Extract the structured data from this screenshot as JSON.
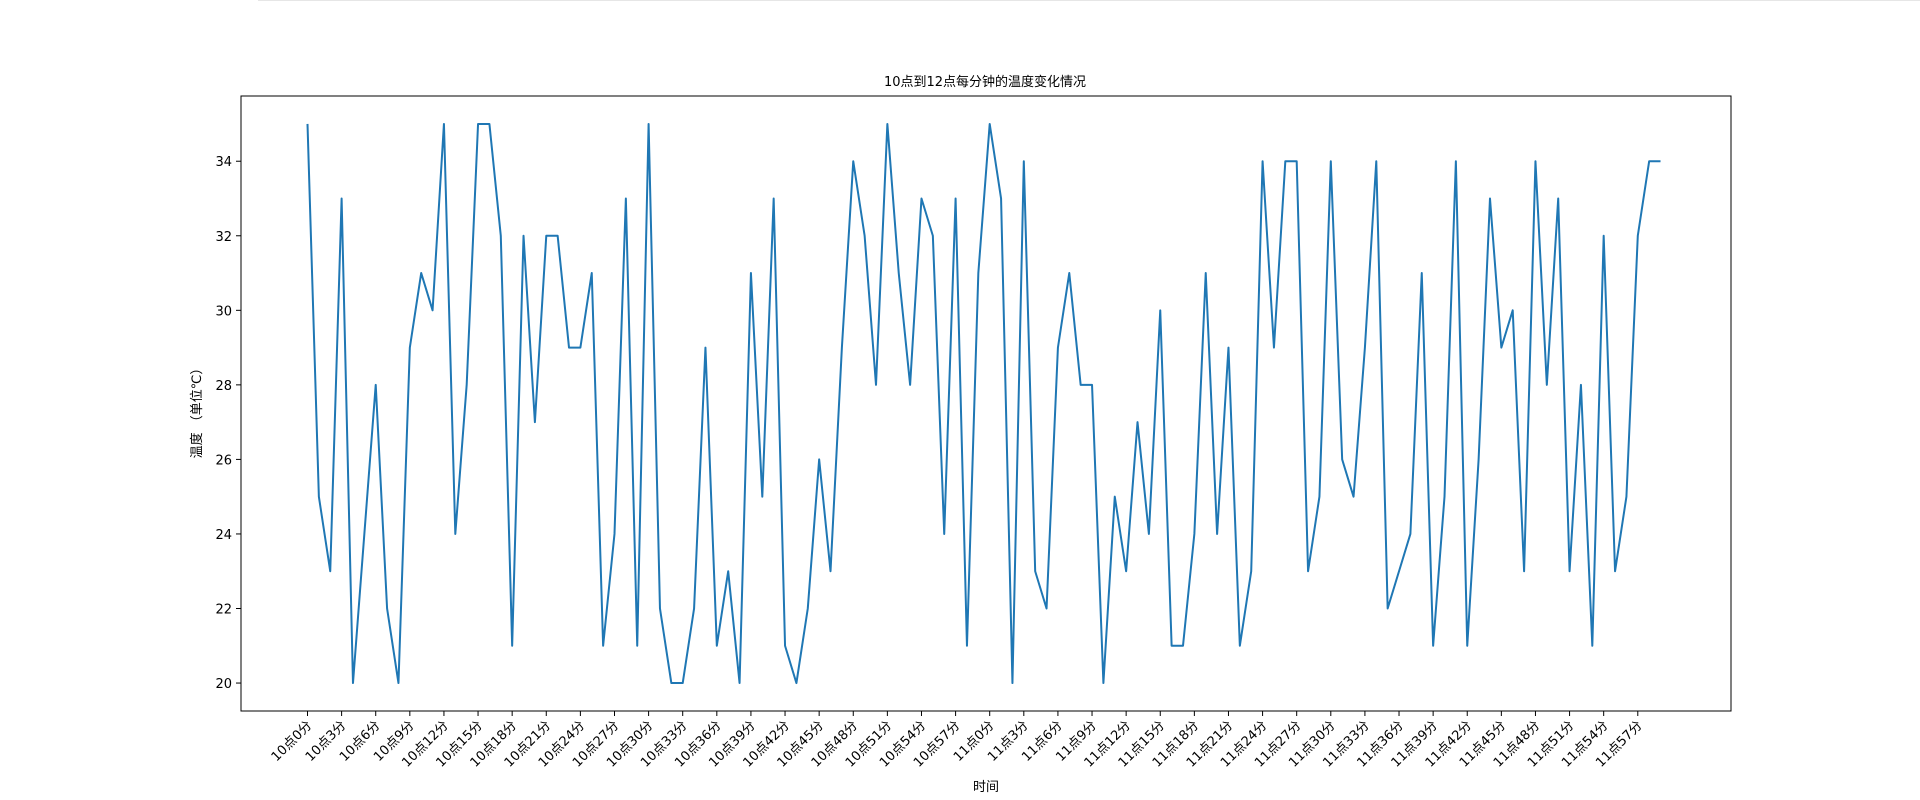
{
  "chart_data": {
    "type": "line",
    "title": "10点到12点每分钟的温度变化情况",
    "xlabel": "时间",
    "ylabel": "温度 （单位℃）",
    "ylim": [
      19.25,
      35.75
    ],
    "yticks": [
      20,
      22,
      24,
      26,
      28,
      30,
      32,
      34
    ],
    "x": [
      "10点0分",
      "10点1分",
      "10点2分",
      "10点3分",
      "10点4分",
      "10点5分",
      "10点6分",
      "10点7分",
      "10点8分",
      "10点9分",
      "10点10分",
      "10点11分",
      "10点12分",
      "10点13分",
      "10点14分",
      "10点15分",
      "10点16分",
      "10点17分",
      "10点18分",
      "10点19分",
      "10点20分",
      "10点21分",
      "10点22分",
      "10点23分",
      "10点24分",
      "10点25分",
      "10点26分",
      "10点27分",
      "10点28分",
      "10点29分",
      "10点30分",
      "10点31分",
      "10点32分",
      "10点33分",
      "10点34分",
      "10点35分",
      "10点36分",
      "10点37分",
      "10点38分",
      "10点39分",
      "10点40分",
      "10点41分",
      "10点42分",
      "10点43分",
      "10点44分",
      "10点45分",
      "10点46分",
      "10点47分",
      "10点48分",
      "10点49分",
      "10点50分",
      "10点51分",
      "10点52分",
      "10点53分",
      "10点54分",
      "10点55分",
      "10点56分",
      "10点57分",
      "10点58分",
      "10点59分",
      "11点0分",
      "11点1分",
      "11点2分",
      "11点3分",
      "11点4分",
      "11点5分",
      "11点6分",
      "11点7分",
      "11点8分",
      "11点9分",
      "11点10分",
      "11点11分",
      "11点12分",
      "11点13分",
      "11点14分",
      "11点15分",
      "11点16分",
      "11点17分",
      "11点18分",
      "11点19分",
      "11点20分",
      "11点21分",
      "11点22分",
      "11点23分",
      "11点24分",
      "11点25分",
      "11点26分",
      "11点27分",
      "11点28分",
      "11点29分",
      "11点30分",
      "11点31分",
      "11点32分",
      "11点33分",
      "11点34分",
      "11点35分",
      "11点36分",
      "11点37分",
      "11点38分",
      "11点39分",
      "11点40分",
      "11点41分",
      "11点42分",
      "11点43分",
      "11点44分",
      "11点45分",
      "11点46分",
      "11点47分",
      "11点48分",
      "11点49分",
      "11点50分",
      "11点51分",
      "11点52分",
      "11点53分",
      "11点54分",
      "11点55分",
      "11点56分",
      "11点57分",
      "11点58分",
      "11点59分"
    ],
    "xtick_step": 3,
    "series": [
      {
        "color": "#1f77b4",
        "values": [
          35,
          25,
          23,
          33,
          20,
          24,
          28,
          22,
          20,
          29,
          31,
          30,
          35,
          24,
          28,
          35,
          35,
          32,
          21,
          32,
          27,
          32,
          32,
          29,
          29,
          31,
          21,
          24,
          33,
          21,
          35,
          22,
          20,
          20,
          22,
          29,
          21,
          23,
          20,
          31,
          25,
          33,
          21,
          20,
          22,
          26,
          23,
          29,
          34,
          32,
          28,
          35,
          31,
          28,
          33,
          32,
          24,
          33,
          21,
          31,
          35,
          33,
          20,
          34,
          23,
          22,
          29,
          31,
          28,
          28,
          20,
          25,
          23,
          27,
          24,
          30,
          21,
          21,
          24,
          31,
          24,
          29,
          21,
          23,
          34,
          29,
          34,
          34,
          23,
          25,
          34,
          26,
          25,
          29,
          34,
          22,
          23,
          24,
          31,
          21,
          25,
          34,
          21,
          26,
          33,
          29,
          30,
          23,
          34,
          28,
          33,
          23,
          28,
          21,
          32,
          23,
          25,
          32,
          34,
          34
        ]
      }
    ],
    "grid": false,
    "legend": "none"
  }
}
